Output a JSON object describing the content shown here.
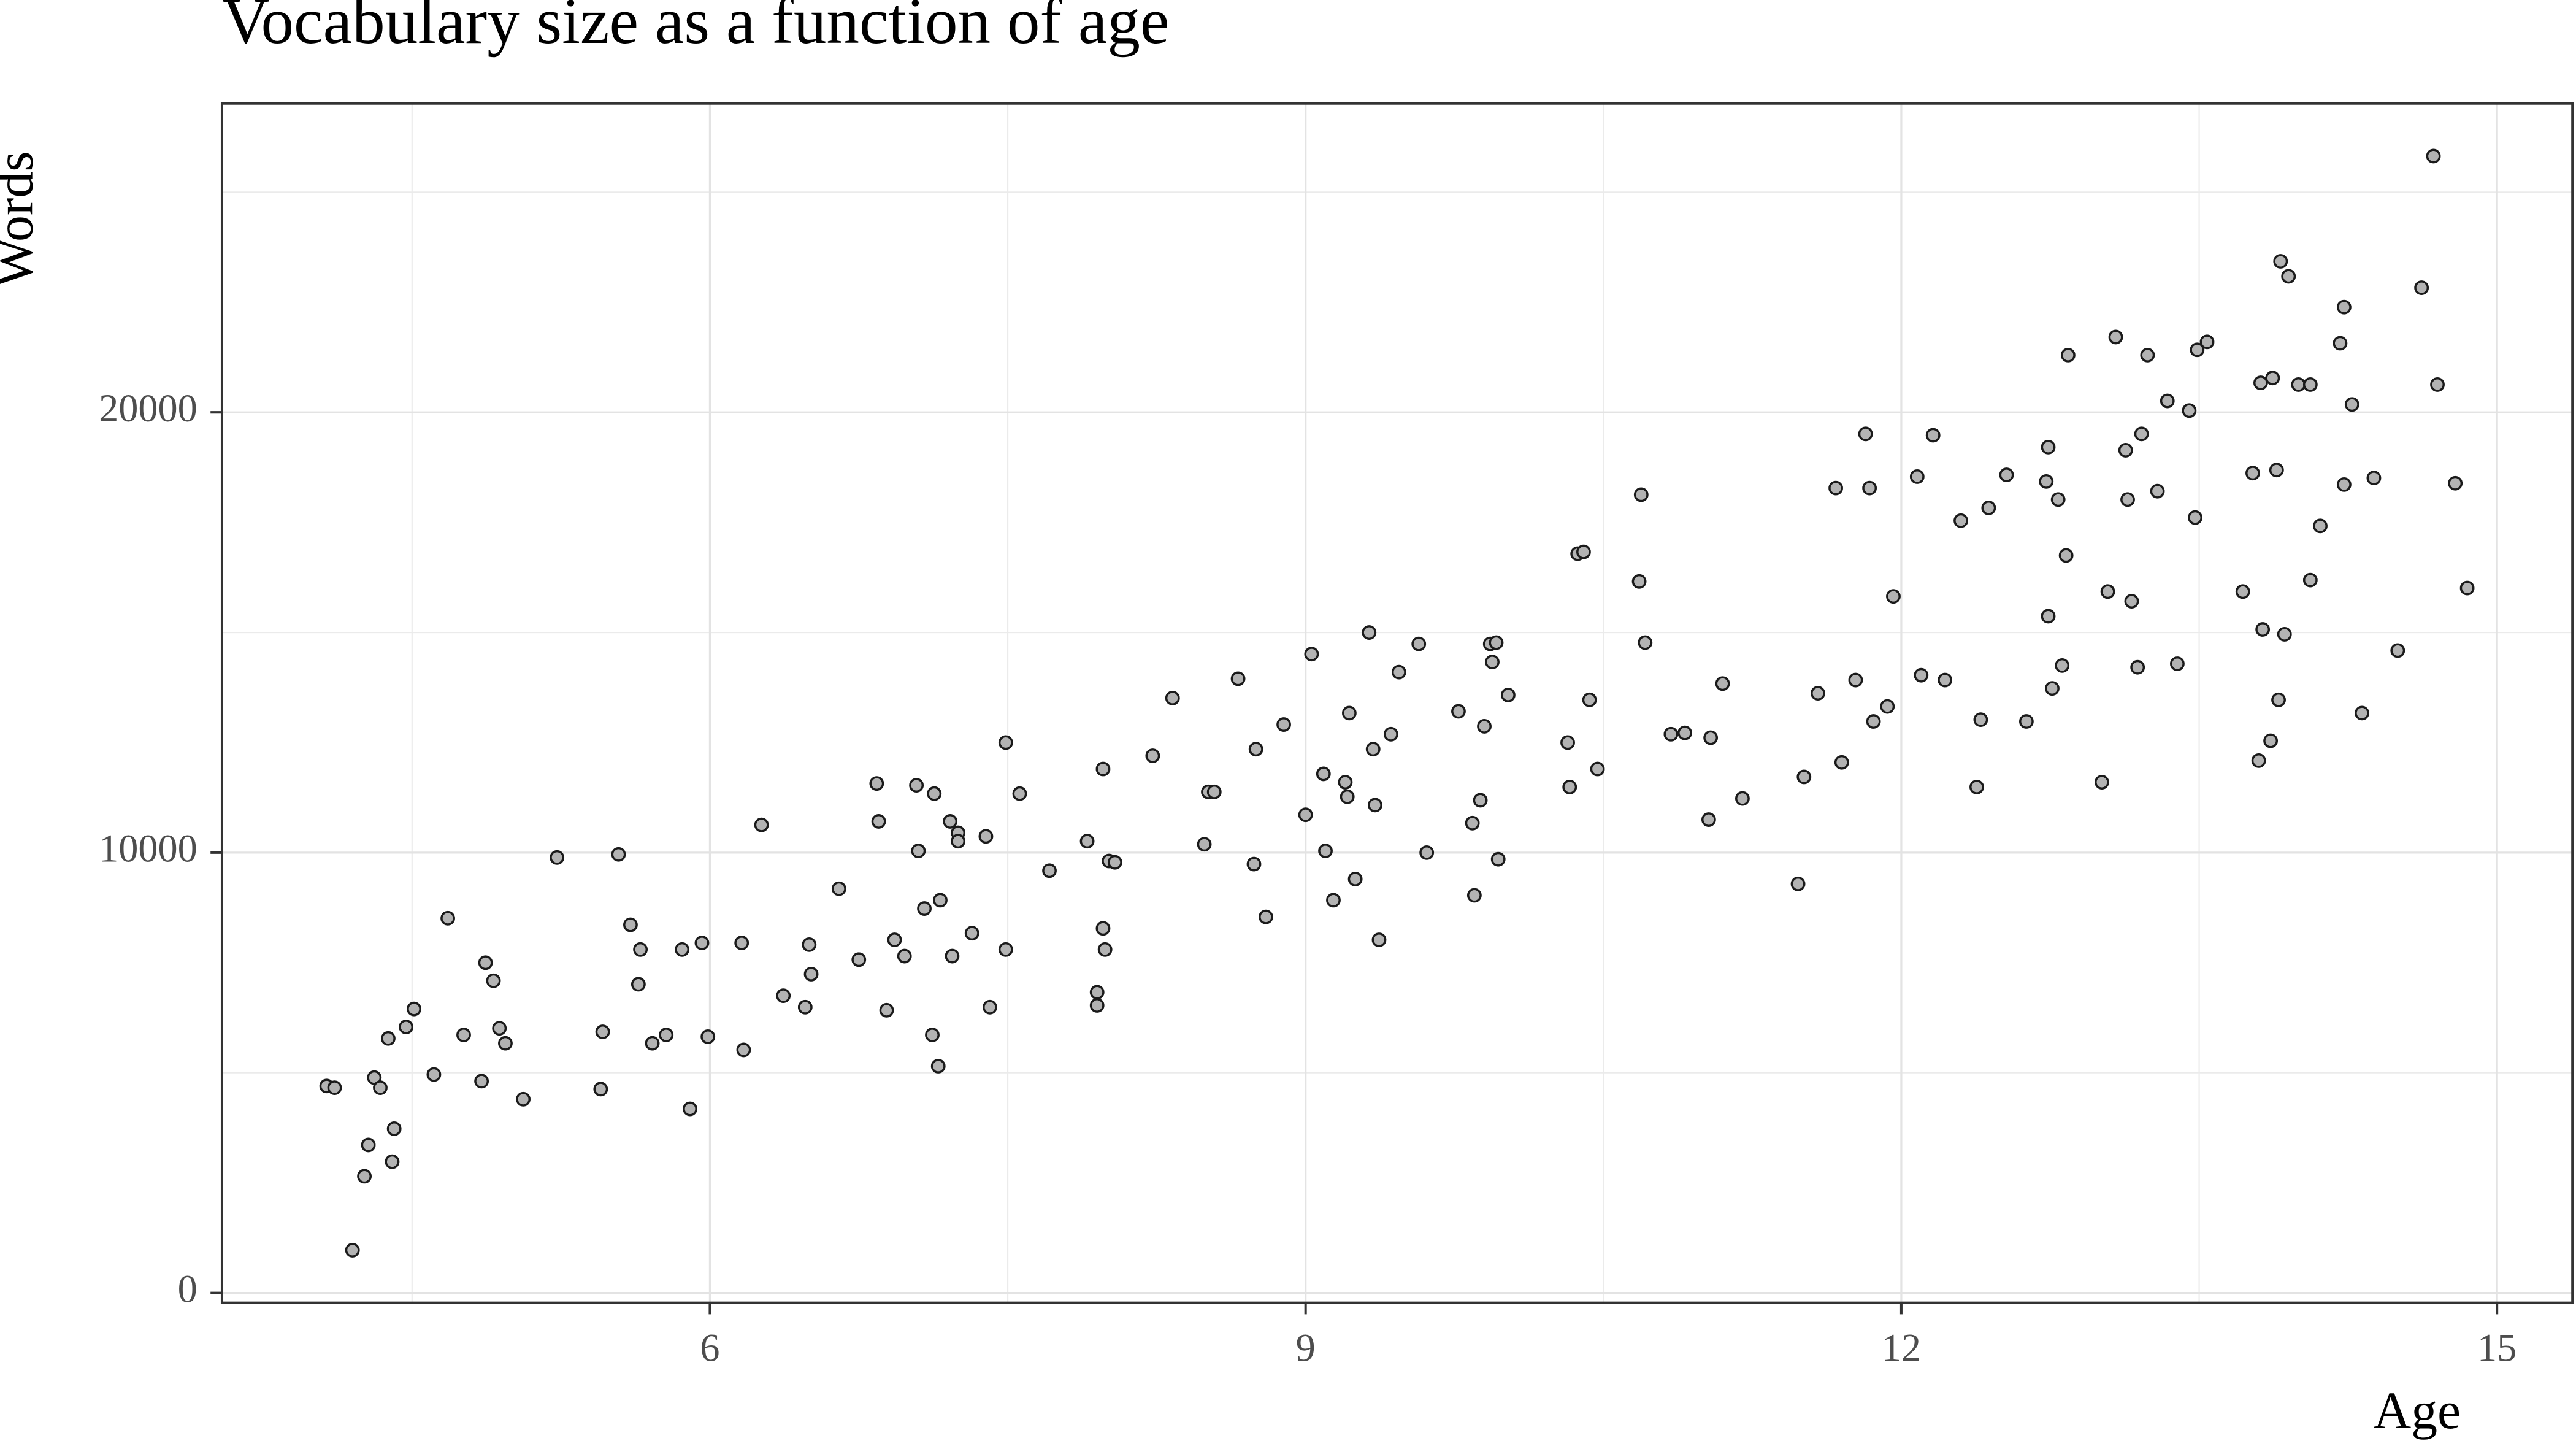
{
  "chart_data": {
    "type": "scatter",
    "title": "Vocabulary size as a function of age",
    "x_label": "Age",
    "y_label": "Words",
    "xlim": [
      3.543,
      15.38
    ],
    "ylim": [
      -224,
      27015
    ],
    "xticks": [
      6,
      9,
      12,
      15
    ],
    "yticks": [
      0,
      10000,
      20000
    ],
    "minor_xticks": [
      4.5,
      7.5,
      10.5,
      13.5
    ],
    "minor_yticks": [
      5000,
      15000,
      25000
    ],
    "grid": true,
    "color": "#b3b3b3",
    "edge_color": "#1a1a1a",
    "x": [
      4.07,
      4.11,
      4.2,
      4.26,
      4.28,
      4.31,
      4.34,
      4.38,
      4.41,
      4.4,
      4.47,
      4.51,
      4.61,
      4.68,
      4.76,
      4.85,
      4.87,
      4.91,
      4.94,
      4.97,
      5.06,
      5.23,
      5.45,
      5.46,
      5.54,
      5.6,
      5.64,
      5.65,
      5.71,
      5.78,
      5.86,
      5.9,
      5.96,
      5.99,
      6.16,
      6.17,
      6.26,
      6.37,
      6.48,
      6.5,
      6.51,
      6.65,
      6.75,
      6.84,
      6.85,
      6.89,
      6.93,
      6.98,
      7.04,
      7.05,
      7.08,
      7.12,
      7.13,
      7.15,
      7.16,
      7.21,
      7.22,
      7.25,
      7.25,
      7.32,
      7.39,
      7.41,
      7.49,
      7.49,
      7.56,
      7.71,
      7.9,
      7.95,
      7.95,
      7.98,
      7.98,
      7.99,
      8.01,
      8.04,
      8.23,
      8.33,
      8.49,
      8.51,
      8.54,
      8.66,
      8.75,
      8.74,
      8.8,
      8.89,
      9.0,
      9.03,
      9.09,
      9.1,
      9.14,
      9.2,
      9.21,
      9.22,
      9.25,
      9.32,
      9.34,
      9.35,
      9.37,
      9.43,
      9.47,
      9.57,
      9.61,
      9.77,
      9.84,
      9.85,
      9.88,
      9.9,
      9.93,
      9.94,
      9.96,
      9.97,
      10.02,
      10.32,
      10.33,
      10.37,
      10.4,
      10.43,
      10.47,
      10.68,
      10.69,
      10.71,
      10.84,
      10.91,
      11.03,
      11.04,
      11.1,
      11.2,
      11.48,
      11.51,
      11.58,
      11.67,
      11.7,
      11.77,
      11.82,
      11.84,
      11.86,
      11.93,
      11.96,
      12.08,
      12.1,
      12.16,
      12.22,
      12.3,
      12.38,
      12.4,
      12.44,
      12.53,
      12.63,
      12.73,
      12.74,
      12.74,
      12.76,
      12.79,
      12.81,
      12.83,
      12.84,
      13.01,
      13.04,
      13.08,
      13.13,
      13.14,
      13.16,
      13.19,
      13.21,
      13.24,
      13.29,
      13.34,
      13.39,
      13.45,
      13.48,
      13.49,
      13.54,
      13.72,
      13.77,
      13.8,
      13.81,
      13.82,
      13.86,
      13.87,
      13.89,
      13.9,
      13.91,
      13.93,
      13.95,
      14.0,
      14.06,
      14.06,
      14.11,
      14.21,
      14.23,
      14.23,
      14.27,
      14.32,
      14.38,
      14.5,
      14.62,
      14.68,
      14.7,
      14.79,
      14.85
    ],
    "values": [
      4700,
      4660,
      970,
      2650,
      3360,
      4890,
      4660,
      5780,
      3730,
      2980,
      6040,
      6450,
      4960,
      8510,
      5860,
      4810,
      7500,
      7090,
      6010,
      5670,
      4400,
      9890,
      4630,
      5930,
      9960,
      8360,
      7010,
      7800,
      5670,
      5860,
      7800,
      4180,
      7950,
      5820,
      7950,
      5520,
      10630,
      6750,
      6490,
      7910,
      7240,
      9180,
      7570,
      11570,
      10710,
      6420,
      8020,
      7650,
      11530,
      10040,
      8730,
      5860,
      11340,
      5150,
      8920,
      10710,
      7650,
      10450,
      10260,
      8170,
      10370,
      6490,
      12500,
      7800,
      11340,
      9590,
      10260,
      6830,
      6530,
      11900,
      8280,
      7800,
      9810,
      9780,
      12200,
      13510,
      10190,
      11380,
      11380,
      13950,
      12350,
      9740,
      8540,
      12910,
      10860,
      14510,
      11790,
      10040,
      8920,
      11600,
      11270,
      13170,
      9400,
      15000,
      12350,
      11080,
      8020,
      12690,
      14100,
      14740,
      10000,
      13210,
      10670,
      9030,
      11190,
      12870,
      14740,
      14330,
      14770,
      9850,
      13580,
      12500,
      11490,
      16790,
      16830,
      13470,
      11900,
      16160,
      18130,
      14770,
      12690,
      12720,
      10750,
      12610,
      13840,
      11230,
      9290,
      11720,
      13620,
      18280,
      12050,
      13920,
      19510,
      18280,
      12980,
      13320,
      15820,
      18540,
      14030,
      19480,
      13920,
      17540,
      11490,
      13020,
      17830,
      18580,
      12980,
      18430,
      19210,
      15370,
      13730,
      18020,
      14250,
      16750,
      21300,
      11600,
      15930,
      21710,
      19140,
      18020,
      15710,
      14210,
      19510,
      21300,
      18210,
      20260,
      14290,
      20040,
      17610,
      21420,
      21600,
      15930,
      18620,
      12090,
      20670,
      15070,
      12540,
      20780,
      18690,
      13470,
      23430,
      14960,
      23090,
      20630,
      20630,
      16190,
      17420,
      21570,
      18360,
      22390,
      20180,
      13170,
      18510,
      14590,
      22830,
      25820,
      20630,
      18390,
      16010
    ]
  }
}
